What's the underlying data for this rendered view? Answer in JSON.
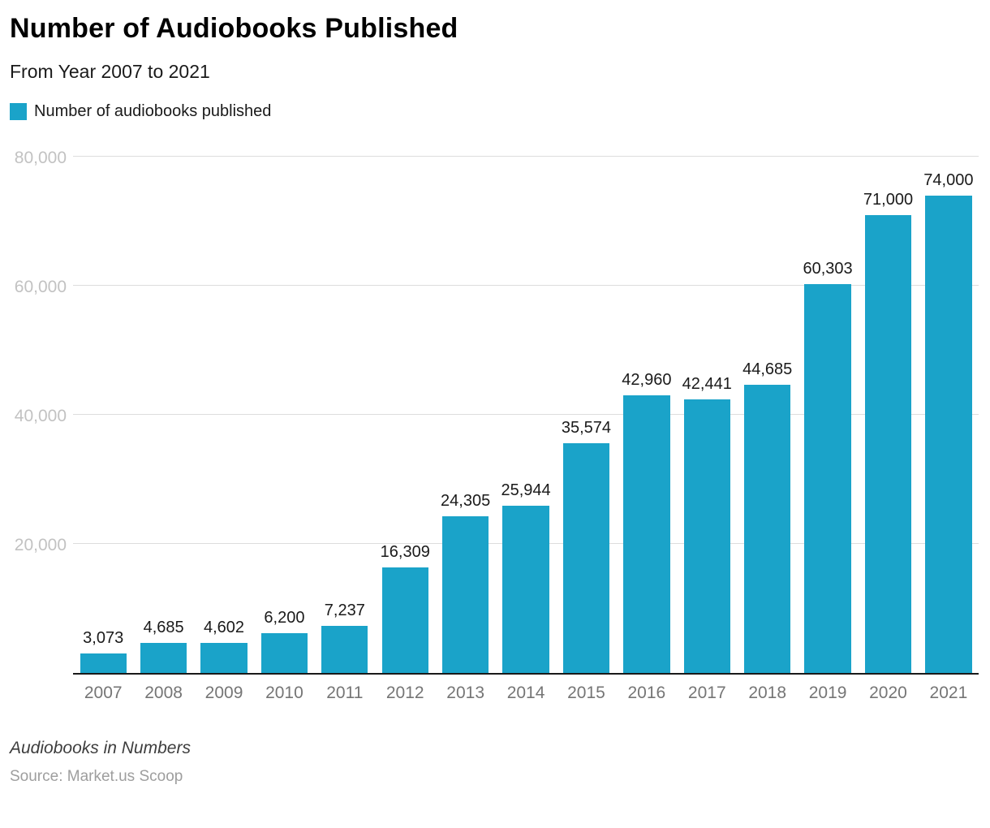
{
  "header": {
    "title": "Number of Audiobooks Published",
    "subtitle": "From Year 2007 to 2021",
    "legend": "Number of audiobooks published"
  },
  "footer": {
    "note": "Audiobooks in Numbers",
    "source": "Source: Market.us Scoop"
  },
  "colors": {
    "bar": "#1AA3C9",
    "grid": "#DDDDDD",
    "baseline": "#1A1A1A",
    "y_label": "#C2C2C2",
    "x_label": "#757575",
    "value_label": "#1A1A1A"
  },
  "chart_data": {
    "type": "bar",
    "title": "Number of Audiobooks Published",
    "subtitle": "From Year 2007 to 2021",
    "legend": [
      "Number of audiobooks published"
    ],
    "legend_position": "top-left",
    "xlabel": "",
    "ylabel": "",
    "categories": [
      "2007",
      "2008",
      "2009",
      "2010",
      "2011",
      "2012",
      "2013",
      "2014",
      "2015",
      "2016",
      "2017",
      "2018",
      "2019",
      "2020",
      "2021"
    ],
    "values": [
      3073,
      4685,
      4602,
      6200,
      7237,
      16309,
      24305,
      25944,
      35574,
      42960,
      42441,
      44685,
      60303,
      71000,
      74000
    ],
    "value_labels": [
      "3,073",
      "4,685",
      "4,602",
      "6,200",
      "7,237",
      "16,309",
      "24,305",
      "25,944",
      "35,574",
      "42,960",
      "42,441",
      "44,685",
      "60,303",
      "71,000",
      "74,000"
    ],
    "ylim": [
      0,
      80000
    ],
    "yticks": [
      20000,
      40000,
      60000,
      80000
    ],
    "ytick_labels": [
      "20,000",
      "40,000",
      "60,000",
      "80,000"
    ],
    "grid": "horizontal"
  }
}
